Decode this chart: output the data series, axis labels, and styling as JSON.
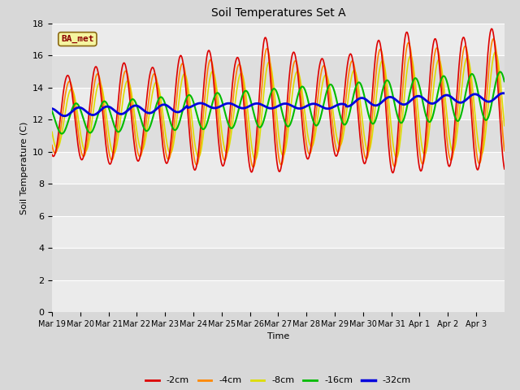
{
  "title": "Soil Temperatures Set A",
  "xlabel": "Time",
  "ylabel": "Soil Temperature (C)",
  "ylim": [
    0,
    18
  ],
  "yticks": [
    0,
    2,
    4,
    6,
    8,
    10,
    12,
    14,
    16,
    18
  ],
  "xtick_labels": [
    "Mar 19",
    "Mar 20",
    "Mar 21",
    "Mar 22",
    "Mar 23",
    "Mar 24",
    "Mar 25",
    "Mar 26",
    "Mar 27",
    "Mar 28",
    "Mar 29",
    "Mar 30",
    "Mar 31",
    "Apr 1",
    "Apr 2",
    "Apr 3"
  ],
  "legend_labels": [
    "-2cm",
    "-4cm",
    "-8cm",
    "-16cm",
    "-32cm"
  ],
  "legend_colors": [
    "#dd0000",
    "#ff8800",
    "#dddd00",
    "#00bb00",
    "#0000dd"
  ],
  "annotation_text": "BA_met",
  "days": 16,
  "bg_light": "#f0f0f0",
  "bg_dark": "#e0e0e0",
  "grid_color": "#ffffff",
  "fig_bg": "#d8d8d8"
}
